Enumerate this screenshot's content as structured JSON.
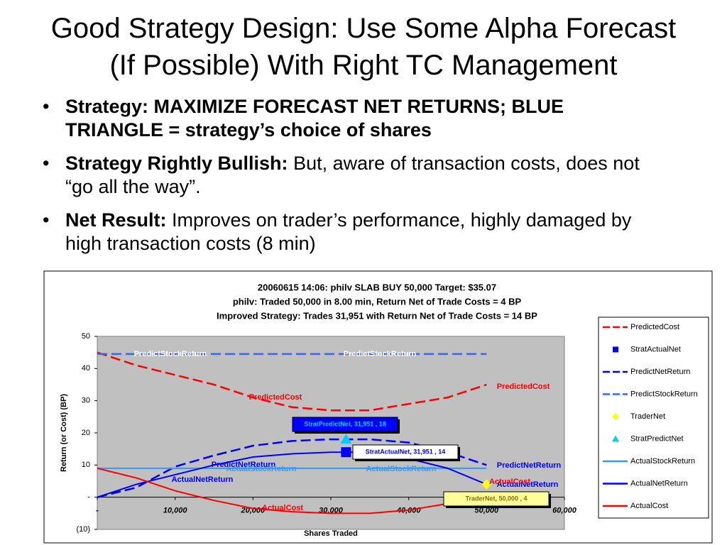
{
  "slide": {
    "title_lines": [
      "Good Strategy Design: Use Some Alpha Forecast",
      "(If Possible) With Right TC Management"
    ],
    "bullets": [
      {
        "bold": "Strategy: MAXIMIZE FORECAST NET RETURNS; BLUE TRIANGLE = strategy’s choice of shares"
      },
      {
        "bold": "Strategy Rightly Bullish:",
        "text": "But, aware of transaction costs, does not “go all the way”."
      },
      {
        "bold": "Net Result:",
        "text": "Improves on trader’s performance, highly damaged by high transaction costs (8 min)"
      }
    ]
  },
  "chart_data": {
    "type": "line",
    "title_lines": [
      "20060615 14:06: philv SLAB BUY 50,000  Target: $35.07",
      "philv: Traded 50,000 in 8.00 min, Return Net of Trade Costs = 4 BP",
      "Improved Strategy: Trades 31,951 with Return Net of Trade Costs = 14 BP"
    ],
    "x_label": "Shares Traded",
    "y_label": "Return (or Cost) (BP)",
    "x": [
      0,
      5000,
      10000,
      15000,
      20000,
      25000,
      30000,
      35000,
      40000,
      45000,
      50000
    ],
    "xlim": [
      0,
      60000
    ],
    "xticks": [
      {
        "value": 0,
        "label": "-"
      },
      {
        "value": 10000,
        "label": "10,000"
      },
      {
        "value": 20000,
        "label": "20,000"
      },
      {
        "value": 30000,
        "label": "30,000"
      },
      {
        "value": 40000,
        "label": "40,000"
      },
      {
        "value": 50000,
        "label": "50,000"
      },
      {
        "value": 60000,
        "label": "60,000"
      }
    ],
    "ylim": [
      -10,
      50
    ],
    "yticks": [
      {
        "value": -10,
        "label": "(10)"
      },
      {
        "value": 0,
        "label": "-"
      },
      10,
      20,
      30,
      40,
      50
    ],
    "series": [
      {
        "name": "PredictedCost",
        "color": "#ff0000",
        "style": "dashed",
        "values": [
          45,
          41,
          38,
          35,
          31,
          28,
          27,
          27,
          29,
          31,
          35
        ]
      },
      {
        "name": "StratActualNet",
        "color": "#0000ff",
        "marker": "square",
        "x": [
          31951
        ],
        "values": [
          14
        ],
        "value_labels": [
          "StratActualNet,  31,951 ,  14"
        ]
      },
      {
        "name": "PredictNetReturn",
        "color": "#0000ff",
        "style": "dashed",
        "values": [
          0,
          3,
          9.5,
          13,
          16,
          17.5,
          18,
          18,
          17,
          14,
          10
        ]
      },
      {
        "name": "PredictStockReturn",
        "color": "#3366ff",
        "style": "dashed",
        "values": [
          44.5,
          44.5,
          44.5,
          44.5,
          44.5,
          44.5,
          44.5,
          44.5,
          44.5,
          44.5,
          44.5
        ]
      },
      {
        "name": "TraderNet",
        "color": "#ffff00",
        "marker": "diamond",
        "x": [
          50000
        ],
        "values": [
          4
        ],
        "value_labels": [
          "TraderNet,  50,000 ,  4"
        ]
      },
      {
        "name": "StratPredictNet",
        "color": "#00ccff",
        "marker": "triangle",
        "x": [
          31951
        ],
        "values": [
          18
        ],
        "value_labels": [
          "StratPredictNet,  31,951 ,  18"
        ]
      },
      {
        "name": "ActualStockReturn",
        "color": "#3399ff",
        "style": "solid",
        "values": [
          9,
          9,
          9,
          9,
          9,
          9,
          9,
          9,
          9,
          9,
          9
        ]
      },
      {
        "name": "ActualNetReturn",
        "color": "#0000ff",
        "style": "solid",
        "values": [
          0,
          4,
          7,
          10,
          12.5,
          13.5,
          14,
          14,
          12,
          9,
          4
        ]
      },
      {
        "name": "ActualCost",
        "color": "#ff0000",
        "style": "solid",
        "values": [
          9,
          6,
          2,
          -1,
          -3.5,
          -4.5,
          -5,
          -5,
          -4,
          -2,
          1
        ]
      }
    ],
    "grid": false
  }
}
